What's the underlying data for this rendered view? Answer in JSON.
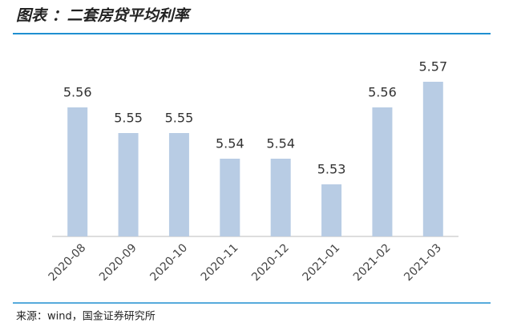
{
  "chart_data": {
    "type": "bar",
    "title": "图表 ：二套房贷平均利率",
    "categories": [
      "2020-08",
      "2020-09",
      "2020-10",
      "2020-11",
      "2020-12",
      "2021-01",
      "2021-02",
      "2021-03"
    ],
    "values": [
      5.56,
      5.55,
      5.55,
      5.54,
      5.54,
      5.53,
      5.56,
      5.57
    ],
    "color": "#b8cce4",
    "source": "来源：wind，国金证券研究所"
  }
}
